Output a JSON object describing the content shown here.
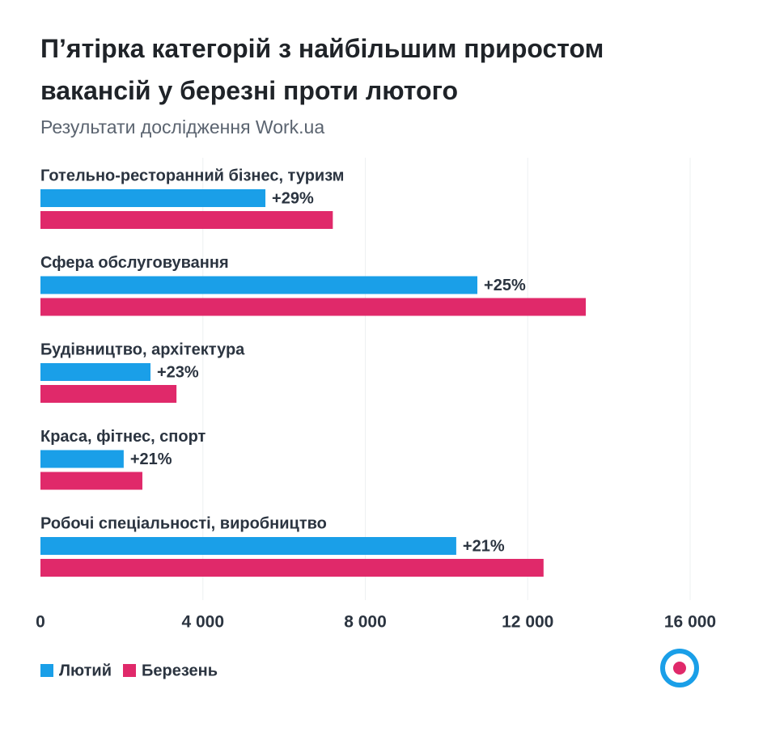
{
  "chart_data": {
    "type": "hbar",
    "title": "П’ятірка категорій з найбільшим приростом вакансій у березні проти лютого",
    "subtitle": "Результати дослідження Work.ua",
    "categories": [
      "Готельно-ресторанний бізнес, туризм",
      "Сфера обслуговування",
      "Будівництво, архітектура",
      "Краса, фітнес, спорт",
      "Робочі спеціальності, виробництво"
    ],
    "series": [
      {
        "name": "Лютий",
        "color": "#1a9fe8",
        "values": [
          5540,
          10760,
          2710,
          2050,
          10240
        ]
      },
      {
        "name": "Березень",
        "color": "#e0296a",
        "values": [
          7200,
          13430,
          3350,
          2510,
          12390
        ]
      }
    ],
    "annotations": [
      "+29%",
      "+25%",
      "+23%",
      "+21%",
      "+21%"
    ],
    "xlim": [
      0,
      16000
    ],
    "xticks": [
      0,
      {
        "value": 4000,
        "label": "4 000"
      },
      {
        "value": 8000,
        "label": "8 000"
      },
      {
        "value": 12000,
        "label": "12 000"
      },
      {
        "value": 16000,
        "label": "16 000"
      }
    ],
    "grid": true
  }
}
